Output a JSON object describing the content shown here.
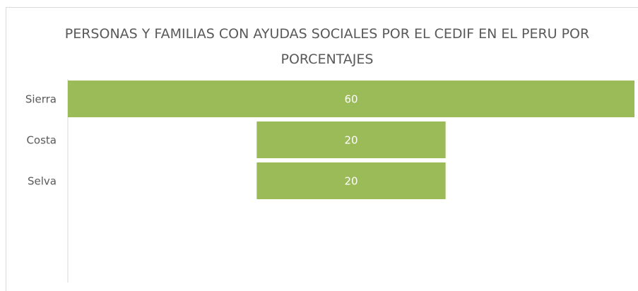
{
  "chart_data": {
    "type": "funnel",
    "title": "PERSONAS Y FAMILIAS CON AYUDAS SOCIALES POR EL CEDIF EN EL PERU POR PORCENTAJES",
    "categories": [
      "Sierra",
      "Costa",
      "Selva"
    ],
    "values": [
      60,
      20,
      20
    ],
    "color": "#9bbb59"
  }
}
